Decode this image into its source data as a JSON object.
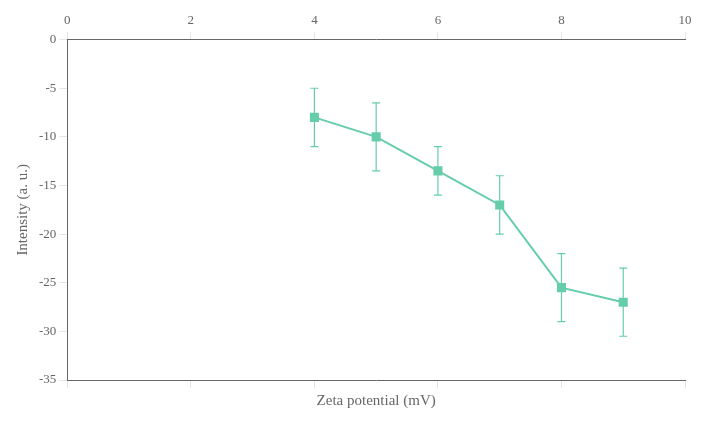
{
  "chart_data": {
    "type": "line",
    "x": [
      4,
      5,
      6,
      7,
      8,
      9
    ],
    "values": [
      -8.0,
      -10.0,
      -13.5,
      -17.0,
      -25.5,
      -27.0
    ],
    "yerr": [
      3.0,
      3.5,
      2.5,
      3.0,
      3.5,
      3.5
    ],
    "color": "#66CDAA",
    "marker": "square",
    "xlabel": "Zeta potential (mV)",
    "ylabel": "Intensity (a. u.)",
    "xlim": [
      0,
      10
    ],
    "ylim": [
      -35,
      0
    ],
    "xticks": [
      0,
      2,
      4,
      6,
      8,
      10
    ],
    "yticks": [
      0,
      -5,
      -10,
      -15,
      -20,
      -25,
      -30,
      -35
    ],
    "grid": false
  }
}
